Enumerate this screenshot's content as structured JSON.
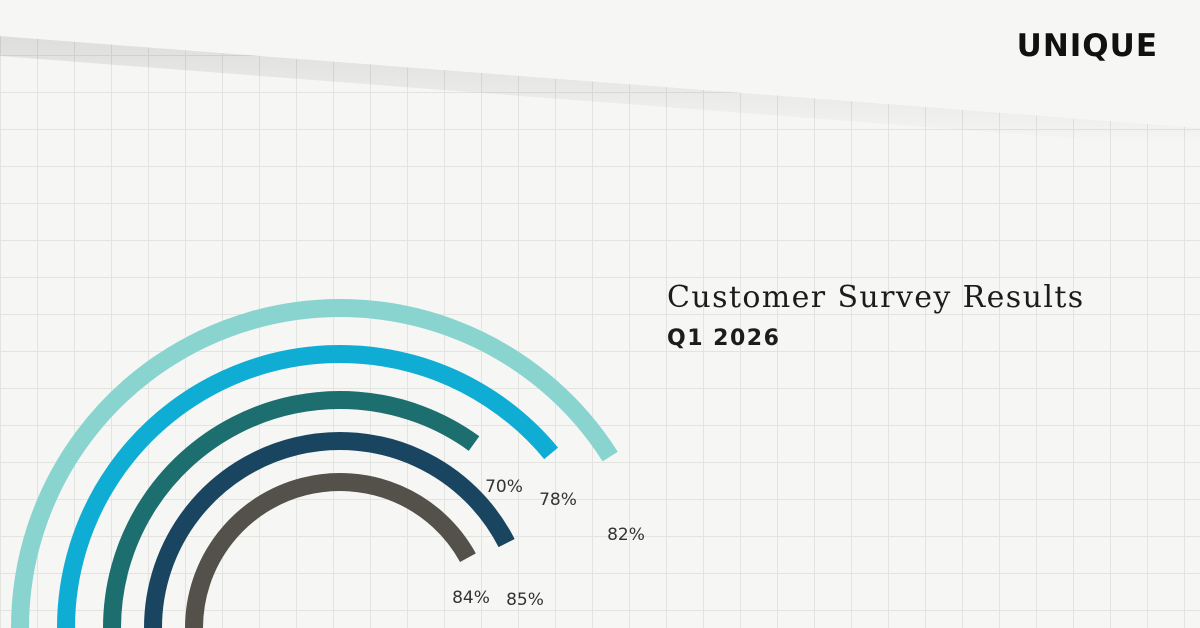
{
  "brand": {
    "logo_text": "UNIQUE"
  },
  "header": {
    "title": "Customer Survey Results",
    "subtitle": "Q1 2026"
  },
  "chart_data": {
    "type": "radial-bar",
    "title": "",
    "value_range": [
      0,
      100
    ],
    "series": [
      {
        "value": 82,
        "label": "82%",
        "color": "#8ad4d0"
      },
      {
        "value": 78,
        "label": "78%",
        "color": "#0fadd4"
      },
      {
        "value": 70,
        "label": "70%",
        "color": "#1d6e6e"
      },
      {
        "value": 85,
        "label": "85%",
        "color": "#1a4560"
      },
      {
        "value": 84,
        "label": "84%",
        "color": "#54504a"
      }
    ]
  }
}
